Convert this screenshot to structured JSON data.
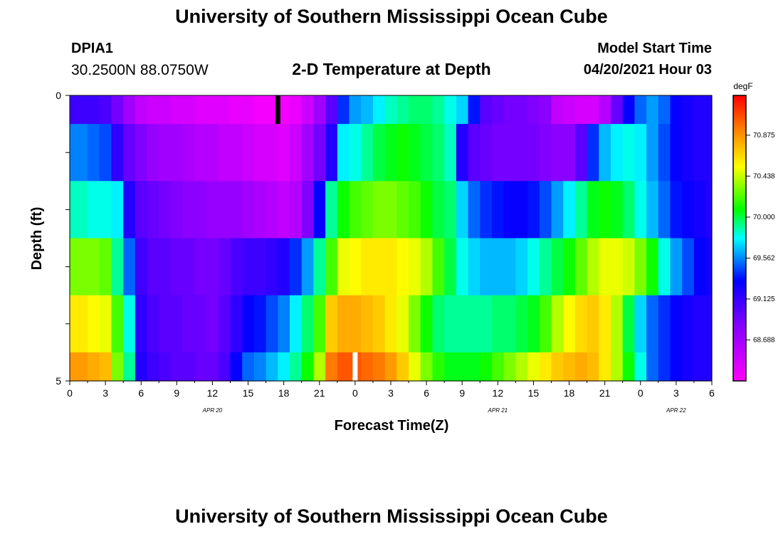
{
  "header": {
    "title_top": "University of Southern Mississippi Ocean Cube",
    "title_bottom": "University of Southern Mississippi Ocean Cube",
    "station_id": "DPIA1",
    "station_coords": "30.2500N  88.0750W",
    "plot_title": "2-D Temperature at Depth",
    "model_start_label": "Model Start Time",
    "model_start_value": "04/20/2021 Hour 03"
  },
  "chart_data": {
    "type": "heatmap",
    "title": "2-D Temperature at Depth",
    "xlabel": "Forecast Time(Z)",
    "ylabel": "Depth (ft)",
    "x_hours_range": [
      0,
      54
    ],
    "y_range": [
      0,
      5
    ],
    "y_tick_labels": [
      "0",
      "5"
    ],
    "x_tick_labels": [
      "0",
      "3",
      "6",
      "9",
      "12",
      "15",
      "18",
      "21",
      "0",
      "3",
      "6",
      "9",
      "12",
      "15",
      "18",
      "21",
      "0",
      "3",
      "6"
    ],
    "date_labels": [
      {
        "text": "APR 20",
        "at_hour": 12
      },
      {
        "text": "APR 21",
        "at_hour": 36
      },
      {
        "text": "APR 22",
        "at_hour": 51
      }
    ],
    "colorbar": {
      "unit": "degF",
      "min": 68.25,
      "max": 71.3,
      "tick_labels": [
        "70.875",
        "70.438",
        "70.000",
        "69.562",
        "69.125",
        "68.688"
      ],
      "tick_values": [
        70.875,
        70.438,
        70.0,
        69.562,
        69.125,
        68.688
      ]
    },
    "depth_layers": [
      "0-0.5",
      "0.5-1.5",
      "1.5-2.5",
      "2.5-3.5",
      "3.5-4.5",
      "4.5-5"
    ],
    "time_hours": [
      0,
      1,
      2,
      3,
      4,
      5,
      6,
      7,
      8,
      9,
      10,
      11,
      12,
      13,
      14,
      15,
      16,
      17,
      18,
      19,
      20,
      21,
      22,
      23,
      24,
      25,
      26,
      27,
      28,
      29,
      30,
      31,
      32,
      33,
      34,
      35,
      36,
      37,
      38,
      39,
      40,
      41,
      42,
      43,
      44,
      45,
      46,
      47,
      48,
      49,
      50,
      51,
      52,
      53,
      54
    ],
    "rows": [
      [
        69.1,
        69.1,
        69.1,
        69.05,
        68.9,
        68.7,
        68.55,
        68.5,
        68.5,
        68.45,
        68.45,
        68.4,
        68.4,
        68.4,
        68.35,
        68.35,
        68.3,
        68.3,
        68.3,
        68.35,
        68.5,
        68.7,
        69.0,
        69.4,
        69.6,
        69.65,
        69.75,
        69.85,
        69.9,
        69.95,
        69.95,
        69.9,
        69.8,
        69.7,
        69.35,
        69.0,
        68.95,
        68.9,
        68.9,
        68.85,
        68.8,
        68.55,
        68.5,
        68.45,
        68.45,
        68.6,
        68.95,
        69.3,
        69.5,
        69.6,
        69.5,
        69.3,
        69.25,
        69.2,
        69.2
      ],
      [
        69.55,
        69.55,
        69.5,
        69.45,
        69.15,
        68.95,
        68.85,
        68.75,
        68.7,
        68.7,
        68.65,
        68.6,
        68.6,
        68.55,
        68.55,
        68.5,
        68.45,
        68.45,
        68.4,
        68.5,
        68.7,
        68.9,
        69.2,
        69.75,
        69.8,
        69.9,
        70.0,
        70.05,
        70.1,
        70.05,
        70.0,
        69.95,
        69.85,
        69.2,
        69.0,
        68.95,
        68.9,
        68.9,
        68.9,
        68.9,
        68.85,
        68.8,
        68.8,
        69.0,
        69.4,
        69.65,
        69.75,
        69.8,
        69.75,
        69.6,
        69.45,
        69.3,
        69.25,
        69.2,
        69.2
      ],
      [
        69.85,
        69.85,
        69.8,
        69.8,
        69.75,
        69.2,
        69.0,
        68.95,
        68.9,
        68.85,
        68.8,
        68.8,
        68.75,
        68.75,
        68.75,
        68.7,
        68.65,
        68.6,
        68.55,
        68.6,
        68.85,
        69.3,
        69.9,
        70.1,
        70.2,
        70.25,
        70.3,
        70.3,
        70.25,
        70.2,
        70.1,
        70.0,
        69.95,
        69.7,
        69.5,
        69.4,
        69.35,
        69.3,
        69.3,
        69.35,
        69.45,
        69.6,
        69.75,
        69.9,
        70.05,
        70.1,
        70.05,
        69.95,
        69.8,
        69.65,
        69.5,
        69.35,
        69.3,
        69.25,
        69.2
      ],
      [
        70.3,
        70.3,
        70.3,
        70.25,
        69.9,
        69.5,
        69.1,
        69.0,
        69.0,
        68.95,
        68.95,
        68.9,
        68.9,
        68.95,
        69.05,
        69.1,
        69.1,
        69.15,
        69.2,
        69.4,
        69.6,
        69.9,
        70.2,
        70.5,
        70.55,
        70.6,
        70.6,
        70.6,
        70.55,
        70.5,
        70.4,
        70.2,
        70.0,
        69.8,
        69.7,
        69.65,
        69.65,
        69.65,
        69.7,
        69.8,
        69.9,
        70.0,
        70.1,
        70.25,
        70.4,
        70.5,
        70.5,
        70.45,
        70.3,
        70.1,
        69.8,
        69.6,
        69.45,
        69.3,
        69.25
      ],
      [
        70.6,
        70.6,
        70.55,
        70.5,
        70.2,
        69.8,
        69.15,
        69.05,
        69.0,
        69.0,
        68.95,
        68.95,
        68.9,
        69.0,
        69.15,
        69.3,
        69.35,
        69.45,
        69.55,
        69.75,
        69.95,
        70.2,
        70.7,
        70.8,
        70.8,
        70.75,
        70.7,
        70.6,
        70.5,
        70.3,
        70.1,
        69.95,
        69.9,
        69.9,
        69.9,
        69.9,
        69.95,
        69.95,
        70.0,
        70.05,
        70.2,
        70.4,
        70.55,
        70.65,
        70.7,
        70.6,
        70.4,
        70.0,
        69.7,
        69.5,
        69.4,
        69.3,
        69.25,
        69.2,
        69.2
      ],
      [
        70.85,
        70.85,
        70.8,
        70.75,
        70.3,
        69.9,
        69.2,
        69.1,
        69.05,
        69.0,
        69.0,
        68.95,
        68.95,
        69.05,
        69.3,
        69.5,
        69.55,
        69.65,
        69.75,
        69.9,
        70.1,
        70.4,
        70.95,
        71.05,
        71.05,
        71.0,
        70.95,
        70.85,
        70.7,
        70.5,
        70.3,
        70.15,
        70.05,
        70.05,
        70.05,
        70.1,
        70.2,
        70.3,
        70.4,
        70.5,
        70.6,
        70.7,
        70.75,
        70.8,
        70.75,
        70.6,
        70.4,
        70.1,
        69.8,
        69.5,
        69.4,
        69.3,
        69.25,
        69.2,
        69.2
      ]
    ],
    "markers": [
      {
        "color": "#000000",
        "at_hour": 17.5,
        "row": 0
      },
      {
        "color": "#ffffff",
        "at_hour": 24,
        "row": 5
      }
    ]
  }
}
